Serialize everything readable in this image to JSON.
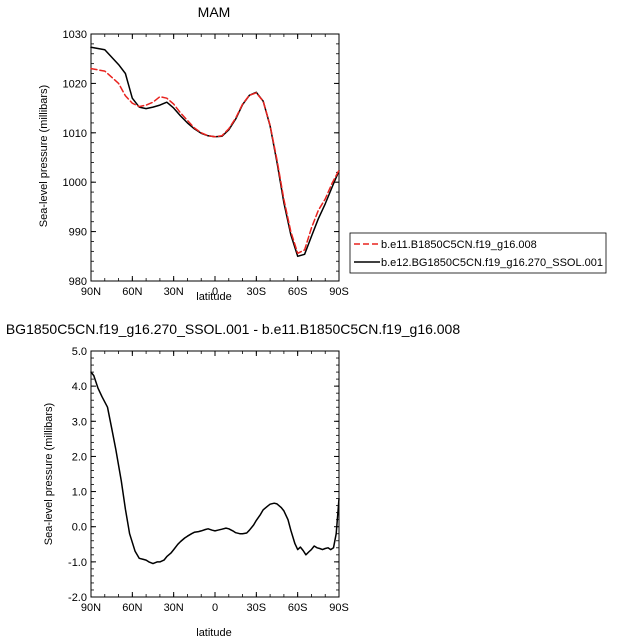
{
  "chart_data": [
    {
      "type": "line",
      "title": "MAM",
      "xlabel": "latitude",
      "ylabel": "Sea-level pressure (millibars)",
      "xlim": [
        90,
        -90
      ],
      "ylim": [
        980,
        1030
      ],
      "x_tick_values": [
        90,
        60,
        30,
        0,
        -30,
        -60,
        -90
      ],
      "x_tick_labels": [
        "90N",
        "60N",
        "30N",
        "0",
        "30S",
        "60S",
        "90S"
      ],
      "y_tick_values": [
        980,
        990,
        1000,
        1010,
        1020,
        1030
      ],
      "y_tick_labels": [
        "980",
        "990",
        "1000",
        "1010",
        "1020",
        "1030"
      ],
      "grid": false,
      "legend_position": "right",
      "x": [
        90,
        80,
        70,
        65,
        60,
        55,
        50,
        45,
        40,
        35,
        30,
        25,
        20,
        15,
        10,
        5,
        0,
        -5,
        -10,
        -15,
        -20,
        -25,
        -30,
        -35,
        -40,
        -45,
        -50,
        -55,
        -60,
        -65,
        -70,
        -75,
        -80,
        -85,
        -90
      ],
      "series": [
        {
          "name": "b.e11.B1850C5CN.f19_g16.008",
          "color": "#e8231f",
          "dash": "dashed",
          "values": [
            1023.0,
            1022.5,
            1020.0,
            1017.5,
            1016.0,
            1015.3,
            1015.6,
            1016.2,
            1017.3,
            1017.0,
            1015.8,
            1014.0,
            1012.5,
            1011.0,
            1010.0,
            1009.4,
            1009.2,
            1009.4,
            1010.8,
            1013.0,
            1015.8,
            1017.6,
            1018.1,
            1016.4,
            1011.5,
            1004.5,
            996.5,
            990.0,
            985.6,
            986.3,
            990.7,
            994.3,
            996.6,
            999.8,
            1002.4
          ]
        },
        {
          "name": "b.e12.BG1850C5CN.f19_g16.270_SSOL.001",
          "color": "#000000",
          "dash": "solid",
          "values": [
            1027.3,
            1026.8,
            1023.8,
            1022.0,
            1017.0,
            1015.2,
            1014.9,
            1015.2,
            1015.6,
            1016.2,
            1015.0,
            1013.4,
            1012.0,
            1010.8,
            1009.9,
            1009.4,
            1009.2,
            1009.3,
            1010.6,
            1012.8,
            1015.7,
            1017.6,
            1018.2,
            1016.4,
            1011.4,
            1004.0,
            995.8,
            989.4,
            985.0,
            985.4,
            989.0,
            992.6,
            995.6,
            999.0,
            1002.3
          ]
        }
      ]
    },
    {
      "type": "line",
      "title": "BG1850C5CN.f19_g16.270_SSOL.001 - b.e11.B1850C5CN.f19_g16.008",
      "xlabel": "latitude",
      "ylabel": "Sea-level pressure (millibars)",
      "xlim": [
        90,
        -90
      ],
      "ylim": [
        -2.0,
        5.0
      ],
      "x_tick_values": [
        90,
        60,
        30,
        0,
        -30,
        -60,
        -90
      ],
      "x_tick_labels": [
        "90N",
        "60N",
        "30N",
        "0",
        "30S",
        "60S",
        "90S"
      ],
      "y_tick_values": [
        -2.0,
        -1.0,
        0.0,
        1.0,
        2.0,
        3.0,
        4.0,
        5.0
      ],
      "y_tick_labels": [
        "-2.0",
        "-1.0",
        "0.0",
        "1.0",
        "2.0",
        "3.0",
        "4.0",
        "5.0"
      ],
      "grid": false,
      "x": [
        90,
        88,
        85,
        82,
        78,
        75,
        72,
        68,
        65,
        62,
        58,
        55,
        52,
        50,
        48,
        45,
        42,
        40,
        37,
        35,
        32,
        30,
        27,
        25,
        22,
        20,
        17,
        15,
        12,
        10,
        7,
        5,
        2,
        0,
        -2,
        -5,
        -8,
        -10,
        -13,
        -15,
        -18,
        -20,
        -23,
        -25,
        -28,
        -30,
        -33,
        -35,
        -38,
        -40,
        -43,
        -45,
        -48,
        -50,
        -53,
        -55,
        -58,
        -60,
        -62,
        -64,
        -66,
        -68,
        -70,
        -72,
        -74,
        -76,
        -78,
        -80,
        -82,
        -84,
        -86,
        -88,
        -89,
        -90
      ],
      "series": [
        {
          "name": "",
          "color": "#000000",
          "dash": "solid",
          "values": [
            4.4,
            4.3,
            3.95,
            3.7,
            3.4,
            2.8,
            2.2,
            1.3,
            0.5,
            -0.2,
            -0.7,
            -0.9,
            -0.93,
            -0.95,
            -1.0,
            -1.05,
            -1.0,
            -1.0,
            -0.95,
            -0.85,
            -0.75,
            -0.65,
            -0.5,
            -0.42,
            -0.32,
            -0.27,
            -0.2,
            -0.16,
            -0.14,
            -0.12,
            -0.08,
            -0.06,
            -0.1,
            -0.12,
            -0.1,
            -0.07,
            -0.04,
            -0.06,
            -0.12,
            -0.17,
            -0.2,
            -0.2,
            -0.18,
            -0.1,
            0.05,
            0.18,
            0.35,
            0.48,
            0.58,
            0.64,
            0.67,
            0.65,
            0.55,
            0.45,
            0.2,
            -0.1,
            -0.48,
            -0.65,
            -0.58,
            -0.68,
            -0.8,
            -0.72,
            -0.65,
            -0.55,
            -0.6,
            -0.62,
            -0.65,
            -0.62,
            -0.6,
            -0.65,
            -0.6,
            -0.2,
            0.3,
            0.8
          ]
        }
      ]
    }
  ]
}
